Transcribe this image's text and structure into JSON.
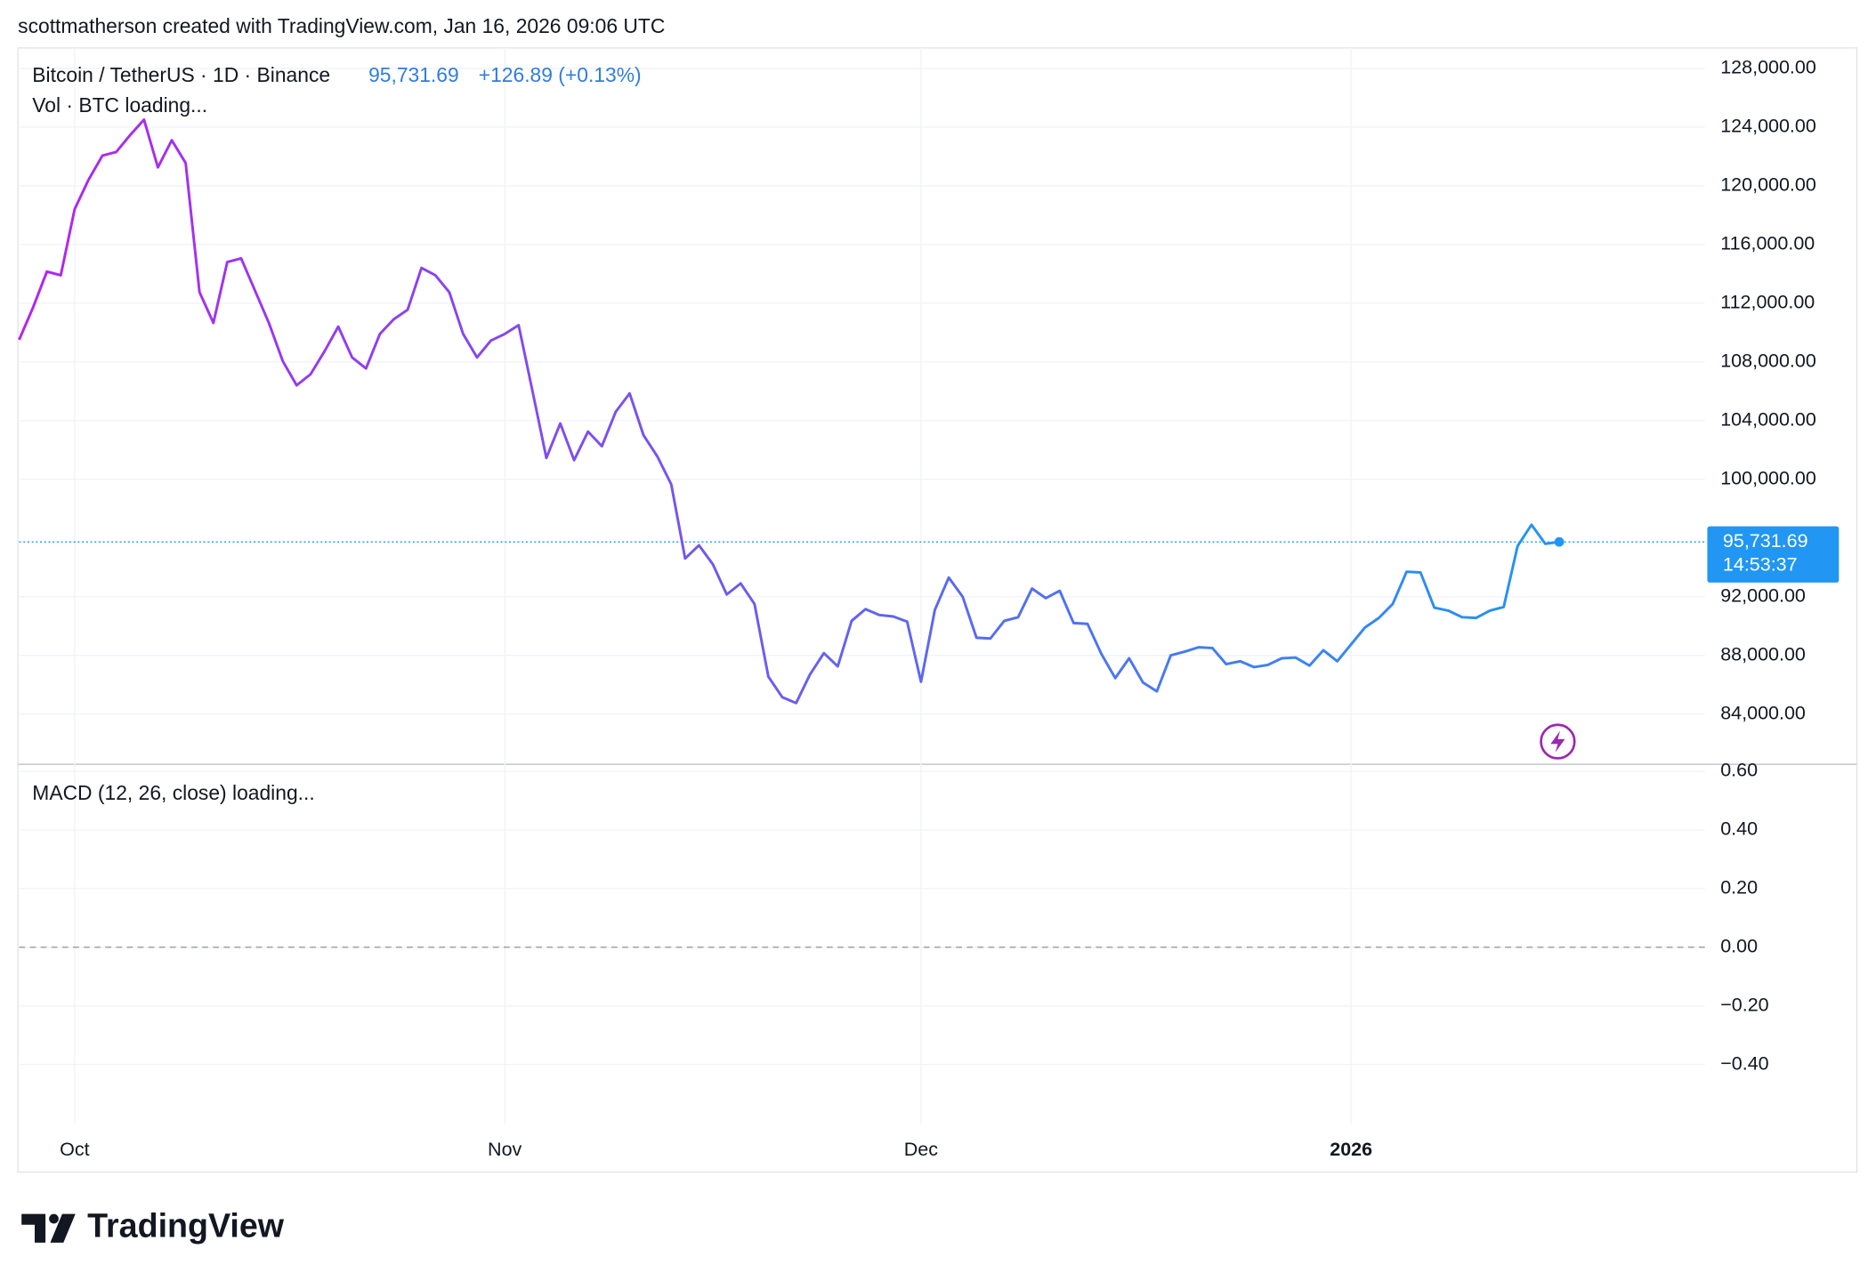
{
  "attribution": "scottmatherson created with TradingView.com, Jan 16, 2026 09:06 UTC",
  "logo": "TradingView",
  "chart_data": [
    {
      "type": "line",
      "symbol": "Bitcoin / TetherUS · 1D · Binance",
      "last_price": "95,731.69",
      "change": "+126.89 (+0.13%)",
      "volume_legend": "Vol · BTC loading...",
      "values": [
        109500,
        111700,
        114150,
        113900,
        118400,
        120400,
        122050,
        122300,
        123450,
        124500,
        121250,
        123100,
        121550,
        112750,
        110650,
        114800,
        115050,
        112850,
        110650,
        108050,
        106400,
        107150,
        108700,
        110400,
        108300,
        107550,
        109900,
        110900,
        111550,
        114400,
        113900,
        112750,
        109900,
        108300,
        109450,
        109900,
        110500,
        106000,
        101450,
        103800,
        101300,
        103250,
        102250,
        104600,
        105850,
        103000,
        101550,
        99650,
        94600,
        95500,
        94200,
        92150,
        92900,
        91500,
        86550,
        85150,
        84750,
        86700,
        88150,
        87250,
        90350,
        91150,
        90750,
        90650,
        90300,
        86200,
        91100,
        93300,
        92000,
        89200,
        89150,
        90350,
        90600,
        92550,
        91900,
        92400,
        90200,
        90150,
        88100,
        86450,
        87800,
        86150,
        85550,
        88000,
        88250,
        88550,
        88500,
        87400,
        87600,
        87200,
        87350,
        87800,
        87850,
        87300,
        88350,
        87600,
        88750,
        89900,
        90550,
        91500,
        93700,
        93650,
        91250,
        91050,
        90600,
        90550,
        91050,
        91300,
        95450,
        96900,
        95600,
        95731.69
      ],
      "colors": [
        "#b225ee",
        "#2196f3"
      ],
      "last_value_label": "95,731.69",
      "countdown": "14:53:37",
      "xlim": [
        0,
        121.5
      ],
      "xticks": [
        {
          "value": 4,
          "label": "Oct"
        },
        {
          "value": 35,
          "label": "Nov"
        },
        {
          "value": 65,
          "label": "Dec"
        },
        {
          "value": 96,
          "label": "2026"
        }
      ],
      "ylim": [
        80660,
        129390
      ],
      "yticks": [
        {
          "value": 128000,
          "label": "128,000.00"
        },
        {
          "value": 124000,
          "label": "124,000.00"
        },
        {
          "value": 120000,
          "label": "120,000.00"
        },
        {
          "value": 116000,
          "label": "116,000.00"
        },
        {
          "value": 112000,
          "label": "112,000.00"
        },
        {
          "value": 108000,
          "label": "108,000.00"
        },
        {
          "value": 104000,
          "label": "104,000.00"
        },
        {
          "value": 100000,
          "label": "100,000.00"
        },
        {
          "value": 92000,
          "label": "92,000.00"
        },
        {
          "value": 88000,
          "label": "88,000.00"
        },
        {
          "value": 84000,
          "label": "84,000.00"
        }
      ],
      "grid": true
    },
    {
      "type": "macd",
      "title": "MACD (12, 26, close) loading...",
      "ylim": [
        -0.604,
        0.624
      ],
      "yticks": [
        {
          "value": 0.6,
          "label": "0.60"
        },
        {
          "value": 0.4,
          "label": "0.40"
        },
        {
          "value": 0.2,
          "label": "0.20"
        },
        {
          "value": 0,
          "label": "0.00"
        },
        {
          "value": -0.2,
          "label": "−0.20"
        },
        {
          "value": -0.4,
          "label": "−0.40"
        }
      ],
      "hline": 0,
      "grid": true
    }
  ]
}
